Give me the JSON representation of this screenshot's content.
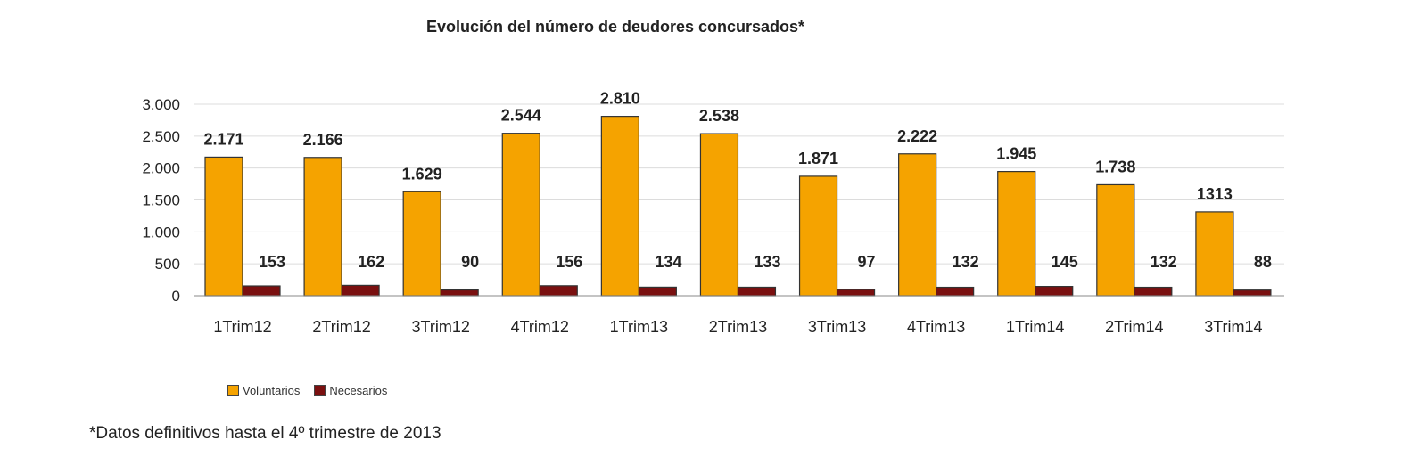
{
  "chart_data": {
    "type": "bar",
    "title": "Evolución del número de  deudores concursados*",
    "categories": [
      "1Trim12",
      "2Trim12",
      "3Trim12",
      "4Trim12",
      "1Trim13",
      "2Trim13",
      "3Trim13",
      "4Trim13",
      "1Trim14",
      "2Trim14",
      "3Trim14"
    ],
    "series": [
      {
        "name": "Voluntarios",
        "color": "#f5a300",
        "values": [
          2171,
          2166,
          1629,
          2544,
          2810,
          2538,
          1871,
          2222,
          1945,
          1738,
          1313
        ],
        "labels": [
          "2.171",
          "2.166",
          "1.629",
          "2.544",
          "2.810",
          "2.538",
          "1.871",
          "2.222",
          "1.945",
          "1.738",
          "1313"
        ]
      },
      {
        "name": "Necesarios",
        "color": "#7a1010",
        "values": [
          153,
          162,
          90,
          156,
          134,
          133,
          97,
          132,
          145,
          132,
          88
        ],
        "labels": [
          "153",
          "162",
          "90",
          "156",
          "134",
          "133",
          "97",
          "132",
          "145",
          "132",
          "88"
        ]
      }
    ],
    "ylim": [
      0,
      3000
    ],
    "yticks": [
      0,
      500,
      1000,
      1500,
      2000,
      2500,
      3000
    ],
    "ytick_labels": [
      "0",
      "500",
      "1.000",
      "1.500",
      "2.000",
      "2.500",
      "3.000"
    ],
    "grid": true,
    "legend_position": "bottom-left"
  },
  "footnote": "*Datos definitivos hasta el 4º trimestre de 2013"
}
